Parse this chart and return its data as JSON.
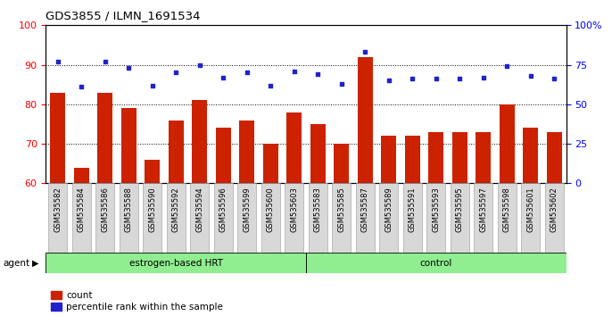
{
  "title": "GDS3855 / ILMN_1691534",
  "samples": [
    "GSM535582",
    "GSM535584",
    "GSM535586",
    "GSM535588",
    "GSM535590",
    "GSM535592",
    "GSM535594",
    "GSM535596",
    "GSM535599",
    "GSM535600",
    "GSM535603",
    "GSM535583",
    "GSM535585",
    "GSM535587",
    "GSM535589",
    "GSM535591",
    "GSM535593",
    "GSM535595",
    "GSM535597",
    "GSM535598",
    "GSM535601",
    "GSM535602"
  ],
  "count_values": [
    83,
    64,
    83,
    79,
    66,
    76,
    81,
    74,
    76,
    70,
    78,
    75,
    70,
    92,
    72,
    72,
    73,
    73,
    73,
    80,
    74,
    73
  ],
  "percentile_values": [
    77,
    61,
    77,
    73,
    62,
    70,
    75,
    67,
    70,
    62,
    71,
    69,
    63,
    83,
    65,
    66,
    66,
    66,
    67,
    74,
    68,
    66
  ],
  "groups": [
    {
      "label": "estrogen-based HRT",
      "start": 0,
      "end": 11,
      "color": "#90EE90"
    },
    {
      "label": "control",
      "start": 11,
      "end": 22,
      "color": "#90EE90"
    }
  ],
  "ylim_left": [
    60,
    100
  ],
  "ylim_right": [
    0,
    100
  ],
  "yticks_left": [
    60,
    70,
    80,
    90,
    100
  ],
  "yticks_right": [
    0,
    25,
    50,
    75,
    100
  ],
  "bar_color": "#CC2200",
  "dot_color": "#2222CC",
  "agent_label": "agent",
  "legend_count": "count",
  "legend_percentile": "percentile rank within the sample",
  "n_estrogen": 11,
  "n_control": 11
}
